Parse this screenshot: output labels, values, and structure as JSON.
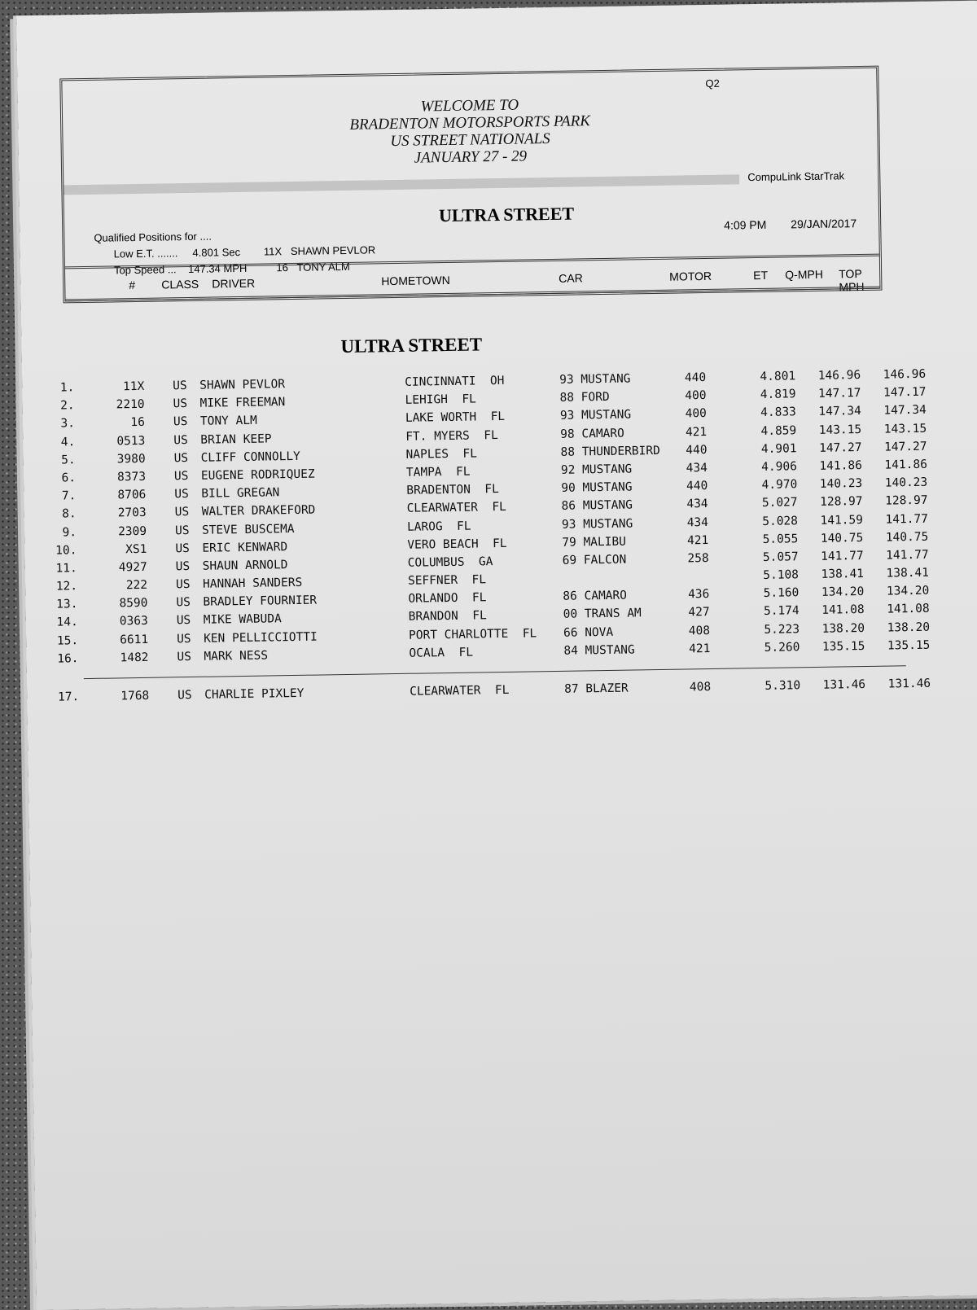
{
  "header": {
    "sheet_code": "Q2",
    "welcome_lines": [
      "WELCOME TO",
      "BRADENTON MOTORSPORTS PARK",
      "US STREET NATIONALS",
      "JANUARY 27 - 29"
    ],
    "brand": "CompuLink  StarTrak",
    "class_title": "ULTRA STREET",
    "time": "4:09 PM",
    "date": "29/JAN/2017",
    "qualified_label": "Qualified Positions for  ....",
    "low_et": {
      "label": "Low E.T.  .......",
      "value": "4.801  Sec",
      "car": "11X",
      "driver": "SHAWN PEVLOR"
    },
    "top_speed": {
      "label": "Top Speed  ...",
      "value": "147.34  MPH",
      "car": "16",
      "driver": "TONY ALM"
    }
  },
  "columns": [
    "#",
    "CLASS",
    "DRIVER",
    "HOMETOWN",
    "CAR",
    "MOTOR",
    "ET",
    "Q-MPH",
    "TOP MPH"
  ],
  "section_title": "ULTRA STREET",
  "rows": [
    [
      "1.",
      "11X",
      "US",
      "SHAWN PEVLOR",
      "CINCINNATI  OH",
      "93 MUSTANG",
      "440",
      "4.801",
      "146.96",
      "146.96"
    ],
    [
      "2.",
      "2210",
      "US",
      "MIKE FREEMAN",
      "LEHIGH  FL",
      "88 FORD",
      "400",
      "4.819",
      "147.17",
      "147.17"
    ],
    [
      "3.",
      "16",
      "US",
      "TONY ALM",
      "LAKE WORTH  FL",
      "93 MUSTANG",
      "400",
      "4.833",
      "147.34",
      "147.34"
    ],
    [
      "4.",
      "0513",
      "US",
      "BRIAN KEEP",
      "FT. MYERS  FL",
      "98 CAMARO",
      "421",
      "4.859",
      "143.15",
      "143.15"
    ],
    [
      "5.",
      "3980",
      "US",
      "CLIFF CONNOLLY",
      "NAPLES  FL",
      "88 THUNDERBIRD",
      "440",
      "4.901",
      "147.27",
      "147.27"
    ],
    [
      "6.",
      "8373",
      "US",
      "EUGENE RODRIQUEZ",
      "TAMPA  FL",
      "92 MUSTANG",
      "434",
      "4.906",
      "141.86",
      "141.86"
    ],
    [
      "7.",
      "8706",
      "US",
      "BILL GREGAN",
      "BRADENTON  FL",
      "90 MUSTANG",
      "440",
      "4.970",
      "140.23",
      "140.23"
    ],
    [
      "8.",
      "2703",
      "US",
      "WALTER DRAKEFORD",
      "CLEARWATER  FL",
      "86 MUSTANG",
      "434",
      "5.027",
      "128.97",
      "128.97"
    ],
    [
      "9.",
      "2309",
      "US",
      "STEVE BUSCEMA",
      "LAROG  FL",
      "93 MUSTANG",
      "434",
      "5.028",
      "141.59",
      "141.77"
    ],
    [
      "10.",
      "XS1",
      "US",
      "ERIC KENWARD",
      "VERO BEACH  FL",
      "79 MALIBU",
      "421",
      "5.055",
      "140.75",
      "140.75"
    ],
    [
      "11.",
      "4927",
      "US",
      "SHAUN ARNOLD",
      "COLUMBUS  GA",
      "69 FALCON",
      "258",
      "5.057",
      "141.77",
      "141.77"
    ],
    [
      "12.",
      "222",
      "US",
      "HANNAH SANDERS",
      "SEFFNER  FL",
      "",
      "",
      "5.108",
      "138.41",
      "138.41"
    ],
    [
      "13.",
      "8590",
      "US",
      "BRADLEY FOURNIER",
      "ORLANDO  FL",
      "86 CAMARO",
      "436",
      "5.160",
      "134.20",
      "134.20"
    ],
    [
      "14.",
      "0363",
      "US",
      "MIKE WABUDA",
      "BRANDON  FL",
      "00 TRANS AM",
      "427",
      "5.174",
      "141.08",
      "141.08"
    ],
    [
      "15.",
      "6611",
      "US",
      "KEN PELLICCIOTTI",
      "PORT CHARLOTTE  FL",
      "66 NOVA",
      "408",
      "5.223",
      "138.20",
      "138.20"
    ],
    [
      "16.",
      "1482",
      "US",
      "MARK NESS",
      "OCALA  FL",
      "84 MUSTANG",
      "421",
      "5.260",
      "135.15",
      "135.15"
    ]
  ],
  "alternate_rows": [
    [
      "17.",
      "1768",
      "US",
      "CHARLIE PIXLEY",
      "CLEARWATER  FL",
      "87 BLAZER",
      "408",
      "5.310",
      "131.46",
      "131.46"
    ]
  ]
}
